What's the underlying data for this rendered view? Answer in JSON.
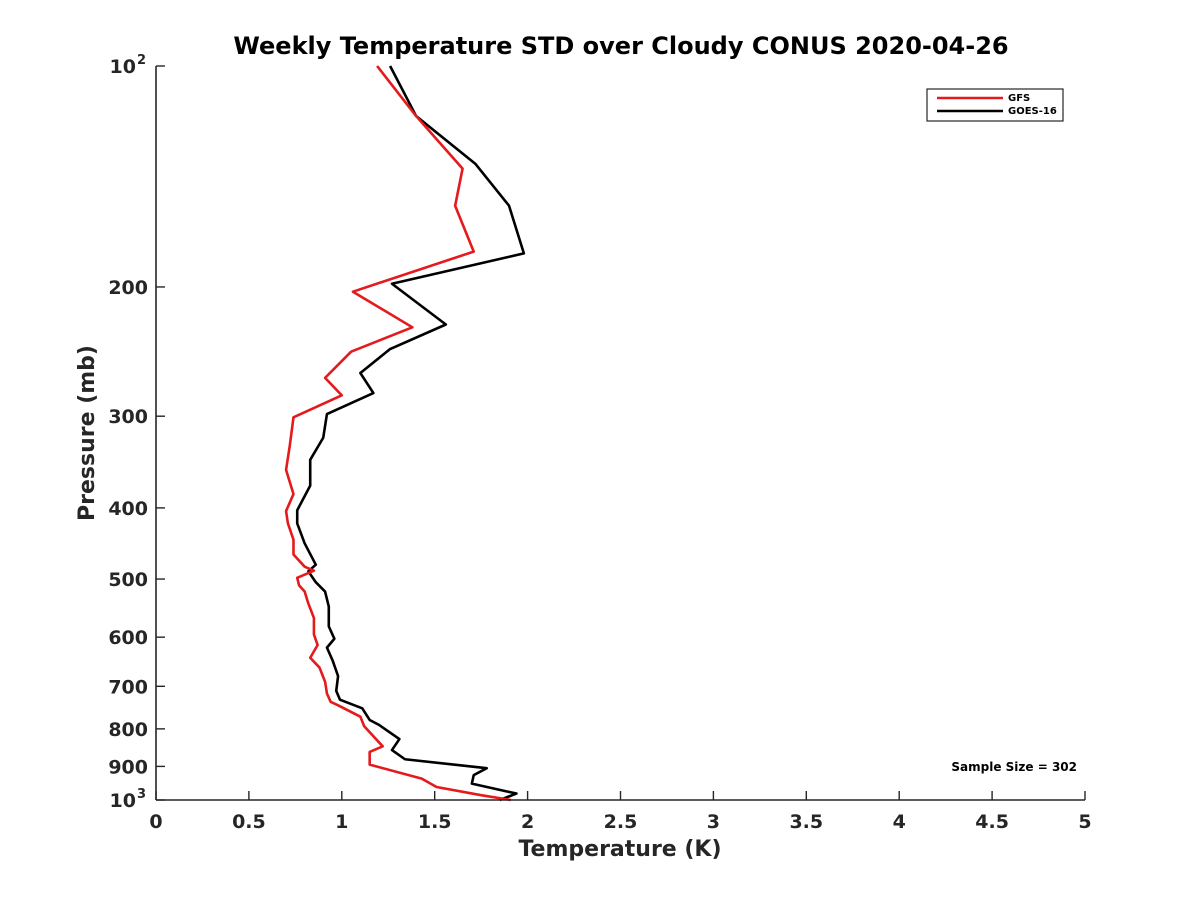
{
  "chart_data": {
    "type": "line",
    "title": "Weekly Temperature STD over Cloudy CONUS 2020-04-26",
    "xlabel": "Temperature (K)",
    "ylabel": "Pressure (mb)",
    "xlim": [
      0,
      5
    ],
    "ylim": [
      100,
      1000
    ],
    "yscale": "log",
    "y_reversed": true,
    "grid": false,
    "legend_position": "top-right",
    "x_ticks": [
      0,
      0.5,
      1,
      1.5,
      2,
      2.5,
      3,
      3.5,
      4,
      4.5,
      5
    ],
    "x_tick_labels": [
      "0",
      "0.5",
      "1",
      "1.5",
      "2",
      "2.5",
      "3",
      "3.5",
      "4",
      "4.5",
      "5"
    ],
    "y_ticks": [
      {
        "value": 100,
        "base": "10",
        "exp": "2"
      },
      {
        "value": 200,
        "label": "200"
      },
      {
        "value": 300,
        "label": "300"
      },
      {
        "value": 400,
        "label": "400"
      },
      {
        "value": 500,
        "label": "500"
      },
      {
        "value": 600,
        "label": "600"
      },
      {
        "value": 700,
        "label": "700"
      },
      {
        "value": 800,
        "label": "800"
      },
      {
        "value": 900,
        "label": "900"
      },
      {
        "value": 1000,
        "base": "10",
        "exp": "3"
      }
    ],
    "annotation": "Sample Size = 302",
    "series": [
      {
        "name": "GFS",
        "color": "#e41a1c",
        "points": [
          [
            1.19,
            100
          ],
          [
            1.4,
            117
          ],
          [
            1.65,
            138
          ],
          [
            1.61,
            155
          ],
          [
            1.71,
            179
          ],
          [
            1.06,
            203
          ],
          [
            1.38,
            227
          ],
          [
            1.05,
            245
          ],
          [
            0.91,
            266
          ],
          [
            1.0,
            281
          ],
          [
            0.74,
            301
          ],
          [
            0.72,
            329
          ],
          [
            0.7,
            355
          ],
          [
            0.74,
            383
          ],
          [
            0.7,
            404
          ],
          [
            0.71,
            420
          ],
          [
            0.74,
            442
          ],
          [
            0.74,
            463
          ],
          [
            0.8,
            481
          ],
          [
            0.85,
            487
          ],
          [
            0.76,
            498
          ],
          [
            0.77,
            510
          ],
          [
            0.8,
            520
          ],
          [
            0.82,
            540
          ],
          [
            0.85,
            565
          ],
          [
            0.85,
            595
          ],
          [
            0.87,
            615
          ],
          [
            0.83,
            640
          ],
          [
            0.88,
            660
          ],
          [
            0.91,
            690
          ],
          [
            0.92,
            716
          ],
          [
            0.94,
            735
          ],
          [
            0.98,
            743
          ],
          [
            1.1,
            770
          ],
          [
            1.12,
            793
          ],
          [
            1.22,
            845
          ],
          [
            1.15,
            860
          ],
          [
            1.15,
            895
          ],
          [
            1.43,
            935
          ],
          [
            1.51,
            960
          ],
          [
            1.75,
            985
          ],
          [
            1.91,
            1000
          ]
        ]
      },
      {
        "name": "GOES-16",
        "color": "#000000",
        "points": [
          [
            1.26,
            100
          ],
          [
            1.4,
            117
          ],
          [
            1.72,
            136
          ],
          [
            1.9,
            155
          ],
          [
            1.98,
            180
          ],
          [
            1.27,
            198
          ],
          [
            1.56,
            225
          ],
          [
            1.26,
            243
          ],
          [
            1.1,
            262
          ],
          [
            1.17,
            279
          ],
          [
            0.92,
            298
          ],
          [
            0.9,
            321
          ],
          [
            0.83,
            344
          ],
          [
            0.83,
            373
          ],
          [
            0.76,
            403
          ],
          [
            0.76,
            420
          ],
          [
            0.8,
            447
          ],
          [
            0.86,
            478
          ],
          [
            0.82,
            488
          ],
          [
            0.86,
            505
          ],
          [
            0.91,
            520
          ],
          [
            0.93,
            545
          ],
          [
            0.93,
            580
          ],
          [
            0.96,
            603
          ],
          [
            0.92,
            620
          ],
          [
            0.95,
            645
          ],
          [
            0.98,
            678
          ],
          [
            0.97,
            710
          ],
          [
            0.99,
            730
          ],
          [
            1.11,
            750
          ],
          [
            1.15,
            778
          ],
          [
            1.2,
            790
          ],
          [
            1.31,
            826
          ],
          [
            1.27,
            855
          ],
          [
            1.34,
            880
          ],
          [
            1.78,
            905
          ],
          [
            1.71,
            925
          ],
          [
            1.7,
            950
          ],
          [
            1.94,
            980
          ],
          [
            1.85,
            1000
          ]
        ]
      }
    ]
  }
}
